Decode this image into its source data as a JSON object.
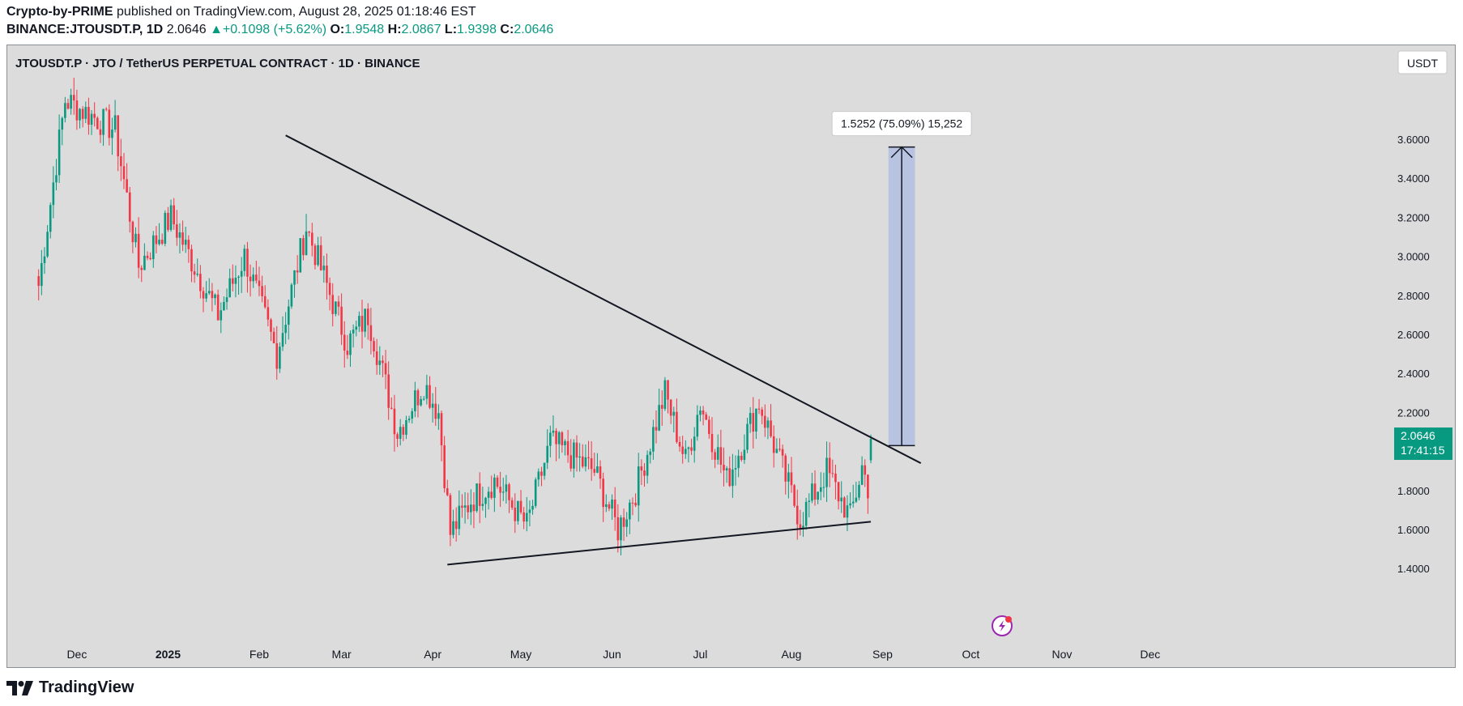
{
  "header": {
    "author": "Crypto-by-PRIME",
    "published_text": "published on TradingView.com, August 28, 2025 01:18:46 EST",
    "symbol": "BINANCE:JTOUSDT.P, 1D",
    "last": "2.0646",
    "change": "+0.1098 (+5.62%)",
    "o_label": "O:",
    "o_value": "1.9548",
    "h_label": "H:",
    "h_value": "2.0867",
    "l_label": "L:",
    "l_value": "1.9398",
    "c_label": "C:",
    "c_value": "2.0646"
  },
  "chart_title": "JTOUSDT.P · JTO / TetherUS PERPETUAL CONTRACT · 1D · BINANCE",
  "currency_button": "USDT",
  "price_tag": {
    "price": "2.0646",
    "countdown": "17:41:15"
  },
  "measure_label": "1.5252 (75.09%) 15,252",
  "footer": {
    "brand": "TradingView"
  },
  "colors": {
    "up": "#089981",
    "down": "#f23645",
    "background": "#dcdcdc",
    "projection": "#b8c3e2"
  },
  "icon": "flash-icon",
  "chart_data": {
    "type": "candlestick",
    "title": "JTOUSDT.P · JTO / TetherUS PERPETUAL CONTRACT · 1D · BINANCE",
    "ylim": [
      1.3,
      3.95
    ],
    "y_ticks": [
      "3.6000",
      "3.4000",
      "3.2000",
      "3.0000",
      "2.8000",
      "2.6000",
      "2.4000",
      "2.2000",
      "2.0000",
      "1.8000",
      "1.6000",
      "1.4000"
    ],
    "x_ticks": [
      "Dec",
      "2025",
      "Feb",
      "Mar",
      "Apr",
      "May",
      "Jun",
      "Jul",
      "Aug",
      "Sep",
      "Oct",
      "Nov",
      "Dec"
    ],
    "grid": false,
    "key_points": [
      {
        "date": "2024-11-18",
        "value": 2.85
      },
      {
        "date": "2024-11-27",
        "value": 3.8
      },
      {
        "date": "2024-12-14",
        "value": 3.65
      },
      {
        "date": "2024-12-22",
        "value": 2.95
      },
      {
        "date": "2025-01-02",
        "value": 3.2
      },
      {
        "date": "2025-01-18",
        "value": 2.7
      },
      {
        "date": "2025-01-27",
        "value": 3.0
      },
      {
        "date": "2025-02-07",
        "value": 2.5
      },
      {
        "date": "2025-02-17",
        "value": 3.15
      },
      {
        "date": "2025-03-03",
        "value": 2.55
      },
      {
        "date": "2025-03-10",
        "value": 2.7
      },
      {
        "date": "2025-03-20",
        "value": 2.1
      },
      {
        "date": "2025-03-29",
        "value": 2.35
      },
      {
        "date": "2025-04-03",
        "value": 2.2
      },
      {
        "date": "2025-04-07",
        "value": 1.58
      },
      {
        "date": "2025-04-14",
        "value": 1.75
      },
      {
        "date": "2025-04-22",
        "value": 1.85
      },
      {
        "date": "2025-05-03",
        "value": 1.62
      },
      {
        "date": "2025-05-11",
        "value": 2.05
      },
      {
        "date": "2025-05-26",
        "value": 1.9
      },
      {
        "date": "2025-06-03",
        "value": 1.6
      },
      {
        "date": "2025-06-09",
        "value": 1.8
      },
      {
        "date": "2025-06-19",
        "value": 2.3
      },
      {
        "date": "2025-06-26",
        "value": 1.95
      },
      {
        "date": "2025-07-01",
        "value": 2.25
      },
      {
        "date": "2025-07-10",
        "value": 1.85
      },
      {
        "date": "2025-07-21",
        "value": 2.25
      },
      {
        "date": "2025-07-28",
        "value": 1.95
      },
      {
        "date": "2025-08-04",
        "value": 1.65
      },
      {
        "date": "2025-08-13",
        "value": 1.9
      },
      {
        "date": "2025-08-21",
        "value": 1.66
      },
      {
        "date": "2025-08-25",
        "value": 1.92
      },
      {
        "date": "2025-08-27",
        "value": 1.82
      },
      {
        "date": "2025-08-28",
        "value": 2.0646
      }
    ],
    "trendlines": [
      {
        "name": "upper",
        "from": {
          "date": "2025-02-10",
          "value": 3.62
        },
        "to": {
          "date": "2025-09-14",
          "value": 1.94
        }
      },
      {
        "name": "lower",
        "from": {
          "date": "2025-04-06",
          "value": 1.42
        },
        "to": {
          "date": "2025-08-28",
          "value": 1.64
        }
      }
    ],
    "projection": {
      "from": "2025-09-03",
      "to": "2025-09-12",
      "bottom": 2.03,
      "top": 3.56
    },
    "last_price": 2.0646
  }
}
